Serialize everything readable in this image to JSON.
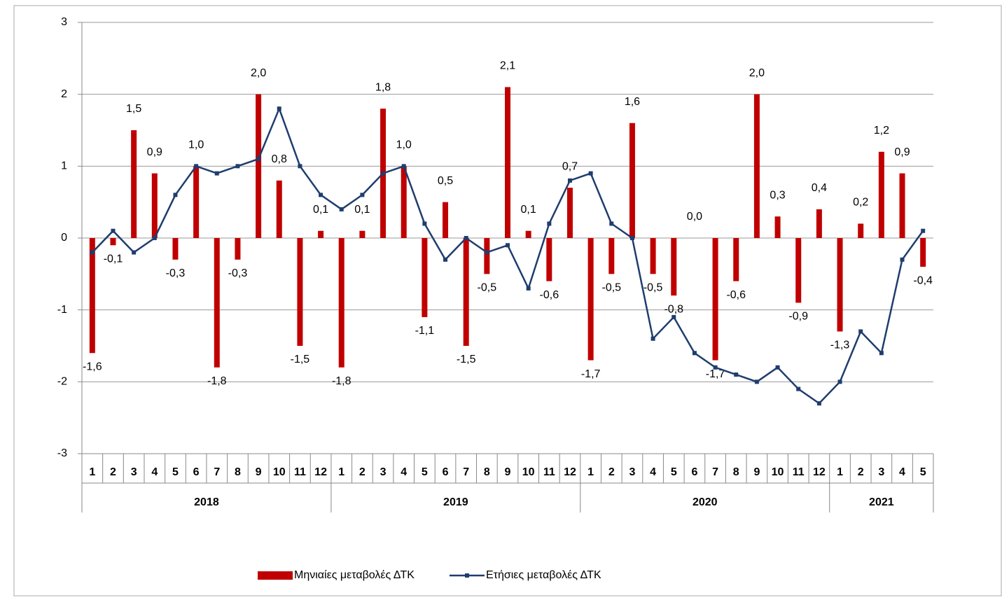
{
  "chart_data": {
    "type": "bar-line",
    "category_groups": [
      {
        "label": "2018",
        "categories": [
          "1",
          "2",
          "3",
          "4",
          "5",
          "6",
          "7",
          "8",
          "9",
          "10",
          "11",
          "12"
        ]
      },
      {
        "label": "2019",
        "categories": [
          "1",
          "2",
          "3",
          "4",
          "5",
          "6",
          "7",
          "8",
          "9",
          "10",
          "11",
          "12"
        ]
      },
      {
        "label": "2020",
        "categories": [
          "1",
          "2",
          "3",
          "4",
          "5",
          "6",
          "7",
          "8",
          "9",
          "10",
          "11",
          "12"
        ]
      },
      {
        "label": "2021",
        "categories": [
          "1",
          "2",
          "3",
          "4",
          "5"
        ]
      }
    ],
    "series": [
      {
        "name": "Μηνιαίες μεταβολές ΔΤΚ",
        "type": "bar",
        "color": "#c00000",
        "values": [
          -1.6,
          -0.1,
          1.5,
          0.9,
          -0.3,
          1.0,
          -1.8,
          -0.3,
          2.0,
          0.8,
          -1.5,
          0.1,
          -1.8,
          0.1,
          1.8,
          1.0,
          -1.1,
          0.5,
          -1.5,
          -0.5,
          2.1,
          0.1,
          -0.6,
          0.7,
          -1.7,
          -0.5,
          1.6,
          -0.5,
          -0.8,
          0.0,
          -1.7,
          -0.6,
          2.0,
          0.3,
          -0.9,
          0.4,
          -1.3,
          0.2,
          1.2,
          0.9,
          -0.4
        ],
        "value_labels": [
          "-1,6",
          "-0,1",
          "1,5",
          "0,9",
          "-0,3",
          "1,0",
          "-1,8",
          "-0,3",
          "2,0",
          "0,8",
          "-1,5",
          "0,1",
          "-1,8",
          "0,1",
          "1,8",
          "1,0",
          "-1,1",
          "0,5",
          "-1,5",
          "-0,5",
          "2,1",
          "0,1",
          "-0,6",
          "0,7",
          "-1,7",
          "-0,5",
          "1,6",
          "-0,5",
          "-0,8",
          "0,0",
          "-1,7",
          "-0,6",
          "2,0",
          "0,3",
          "-0,9",
          "0,4",
          "-1,3",
          "0,2",
          "1,2",
          "0,9",
          "-0,4"
        ]
      },
      {
        "name": "Ετήσιες μεταβολές ΔΤΚ",
        "type": "line",
        "color": "#1f3d6e",
        "values": [
          -0.2,
          0.1,
          -0.2,
          0.0,
          0.6,
          1.0,
          0.9,
          1.0,
          1.1,
          1.8,
          1.0,
          0.6,
          0.4,
          0.6,
          0.9,
          1.0,
          0.2,
          -0.3,
          0.0,
          -0.2,
          -0.1,
          -0.7,
          0.2,
          0.8,
          0.9,
          0.2,
          0.0,
          -1.4,
          -1.1,
          -1.6,
          -1.8,
          -1.9,
          -2.0,
          -1.8,
          -2.1,
          -2.3,
          -2.0,
          -1.3,
          -1.6,
          -0.3,
          0.1
        ]
      }
    ],
    "ylim": [
      -3,
      3
    ],
    "yticks": [
      -3,
      -2,
      -1,
      0,
      1,
      2,
      3
    ],
    "grid": true,
    "legend": "bottom"
  }
}
